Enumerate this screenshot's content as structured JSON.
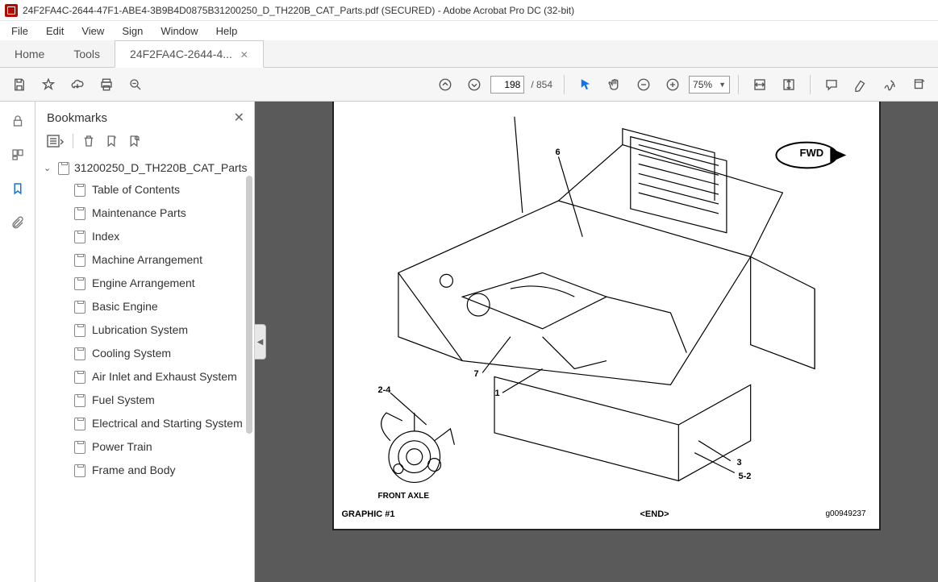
{
  "window": {
    "title": "24F2FA4C-2644-47F1-ABE4-3B9B4D0875B31200250_D_TH220B_CAT_Parts.pdf (SECURED) - Adobe Acrobat Pro DC (32-bit)"
  },
  "menubar": {
    "items": [
      "File",
      "Edit",
      "View",
      "Sign",
      "Window",
      "Help"
    ]
  },
  "tabs": {
    "home": "Home",
    "tools": "Tools",
    "active": "24F2FA4C-2644-4..."
  },
  "toolbar": {
    "page_current": "198",
    "page_total": "/ 854",
    "zoom": "75%"
  },
  "bookmarks": {
    "title": "Bookmarks",
    "root": "31200250_D_TH220B_CAT_Parts",
    "items": [
      "Table of Contents",
      "Maintenance Parts",
      "Index",
      "Machine Arrangement",
      "Engine Arrangement",
      "Basic Engine",
      "Lubrication System",
      "Cooling System",
      "Air Inlet and Exhaust System",
      "Fuel System",
      "Electrical and Starting System",
      "Power Train",
      "Frame and Body"
    ]
  },
  "pdfpage": {
    "fwd_label": "FWD",
    "front_axle": "FRONT AXLE",
    "graphic": "GRAPHIC #1",
    "end": "<END>",
    "docid": "g00949237",
    "callouts": {
      "c1": "1",
      "c3": "3",
      "c5_2": "5-2",
      "c6": "6",
      "c7": "7",
      "c2_4": "2-4"
    }
  },
  "colors": {
    "accent": "#1473e6",
    "toolbar_bg": "#f6f6f6",
    "viewer_bg": "#5a5a5a",
    "border": "#cccccc"
  }
}
